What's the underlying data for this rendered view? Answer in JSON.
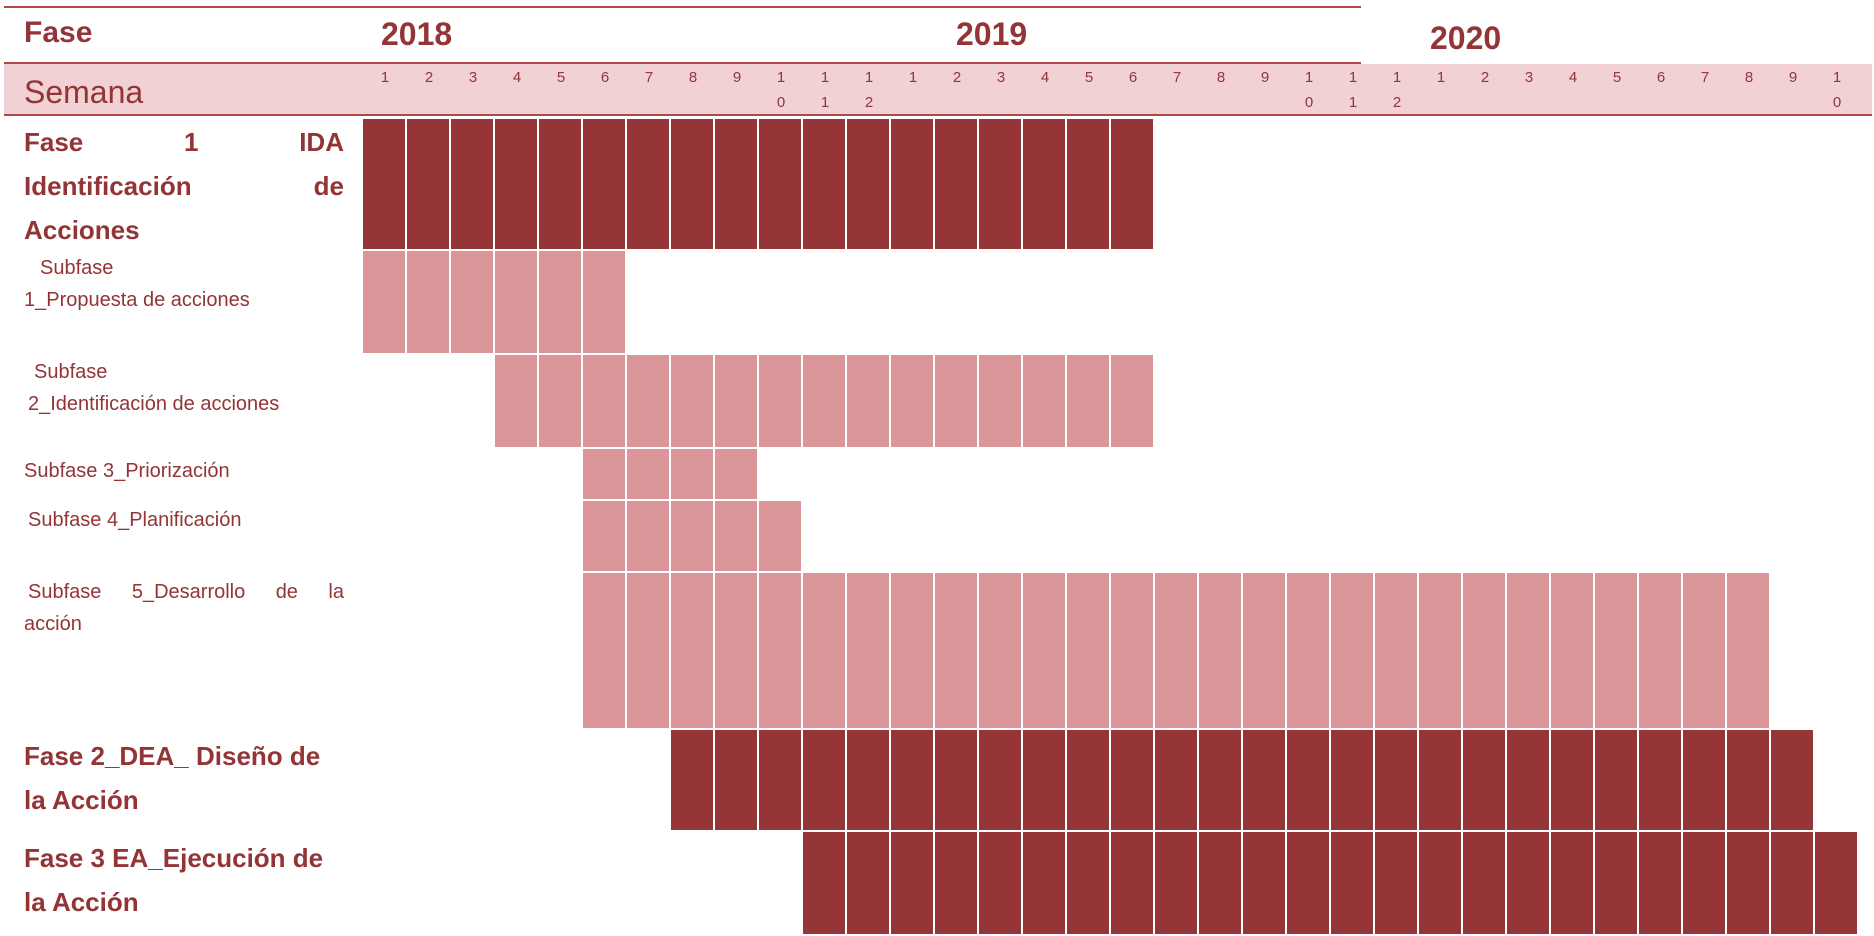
{
  "header": {
    "fase_label": "Fase",
    "semana_label": "Semana",
    "years": [
      "2018",
      "2019",
      "2020"
    ]
  },
  "week_row_1": [
    "1",
    "2",
    "3",
    "4",
    "5",
    "6",
    "7",
    "8",
    "9",
    "1",
    "1",
    "1",
    "1",
    "2",
    "3",
    "4",
    "5",
    "6",
    "7",
    "8",
    "9",
    "1",
    "1",
    "1",
    "1",
    "2",
    "3",
    "4",
    "5",
    "6",
    "7",
    "8",
    "9",
    "1"
  ],
  "week_row_2": [
    "",
    "",
    "",
    "",
    "",
    "",
    "",
    "",
    "",
    "0",
    "1",
    "2",
    "",
    "",
    "",
    "",
    "",
    "",
    "",
    "",
    "",
    "0",
    "1",
    "2",
    "",
    "",
    "",
    "",
    "",
    "",
    "",
    "",
    "",
    "0"
  ],
  "rows": [
    {
      "lines": [
        [
          "Fase",
          "1",
          "IDA"
        ],
        [
          "Identificación",
          "de"
        ],
        [
          "Acciones"
        ]
      ],
      "style": "phase",
      "start": 0,
      "end": 17,
      "color": "dark"
    },
    {
      "lines": [
        [
          "Subfase"
        ],
        [
          "1_Propuesta de acciones"
        ]
      ],
      "style": "sub",
      "start": 0,
      "end": 5,
      "color": "light"
    },
    {
      "lines": [
        [
          "Subfase"
        ],
        [
          "2_Identificación de acciones"
        ]
      ],
      "style": "sub",
      "start": 3,
      "end": 17,
      "color": "light"
    },
    {
      "lines": [
        [
          "Subfase 3_Priorización"
        ]
      ],
      "style": "sub",
      "start": 5,
      "end": 8,
      "color": "light"
    },
    {
      "lines": [
        [
          "Subfase 4_Planificación"
        ]
      ],
      "style": "sub",
      "start": 5,
      "end": 9,
      "color": "light"
    },
    {
      "lines": [
        [
          "Subfase",
          "5_Desarrollo",
          "de",
          "la"
        ],
        [
          "acción"
        ]
      ],
      "style": "sub",
      "start": 5,
      "end": 31,
      "color": "light"
    },
    {
      "lines": [
        [
          "Fase 2_DEA_ Diseño de"
        ],
        [
          "la Acción"
        ]
      ],
      "style": "phase",
      "start": 7,
      "end": 32,
      "color": "dark"
    },
    {
      "lines": [
        [
          "Fase 3 EA_Ejecución de"
        ],
        [
          "la Acción"
        ]
      ],
      "style": "phase",
      "start": 10,
      "end": 33,
      "color": "dark"
    }
  ]
}
